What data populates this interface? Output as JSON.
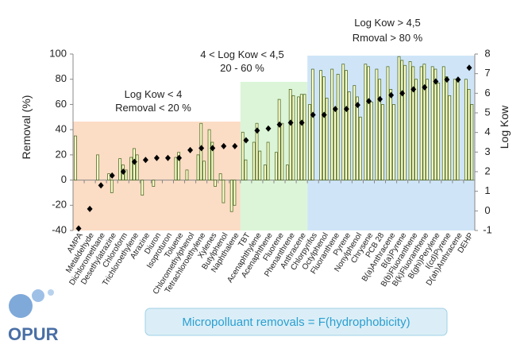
{
  "chart_data": {
    "type": "bar",
    "y_label": "Removal (%)",
    "y2_label": "Log Kow",
    "categories": [
      "AMPA",
      "Metaldehyde",
      "Dichloromethane",
      "Desethylatrazine",
      "Chloroform",
      "Trichloroethylene",
      "Atrazine",
      "Diuron",
      "Isoproturon",
      "Toluene",
      "Chloromethylphenol",
      "Tetrachloroethylene",
      "Xylenes",
      "Butylphenol",
      "Naphthalene",
      "TBT",
      "Acenaphthylene",
      "Acenaphthene",
      "Fluorene",
      "Phenanthrene",
      "Anthracene",
      "Chlorpyrifos",
      "Octylphenol",
      "Fluoranthene",
      "Pyrene",
      "Nonylphenol",
      "Chrysene",
      "PCB 28",
      "B(a)Anthracene",
      "B(a)Pyrene",
      "B(b)Fluoranthene",
      "B(k)Fluoranthene",
      "B(ghi)Perylene",
      "I(cd)Pyrene",
      "D(ah)Anthracene",
      "DEHP"
    ],
    "series": [
      {
        "type": "bar",
        "color": "#ffffcc",
        "values": [
          35,
          null,
          20,
          5,
          17,
          18,
          -12,
          -5,
          null,
          18,
          8,
          20,
          40,
          5,
          -25,
          38,
          30,
          12,
          22,
          12,
          66,
          60,
          87,
          88,
          92,
          75,
          92,
          88,
          90,
          98,
          94,
          90,
          90,
          90,
          80,
          80
        ]
      },
      {
        "type": "bar",
        "color": "#ffffcc",
        "values": [
          null,
          null,
          null,
          -10,
          12,
          25,
          null,
          null,
          null,
          22,
          null,
          45,
          30,
          -18,
          -20,
          16,
          45,
          30,
          64,
          72,
          68,
          88,
          82,
          55,
          87,
          66,
          90,
          80,
          72,
          95,
          90,
          92,
          88,
          82,
          78,
          72
        ]
      },
      {
        "type": "bar",
        "color": "#ffffcc",
        "values": [
          null,
          null,
          null,
          null,
          8,
          20,
          null,
          null,
          null,
          null,
          null,
          15,
          -5,
          null,
          null,
          null,
          23,
          null,
          45,
          67,
          68,
          null,
          65,
          84,
          70,
          50,
          62,
          60,
          60,
          91,
          80,
          80,
          77,
          67,
          null,
          60
        ]
      },
      {
        "type": "scatter",
        "axis": "y2",
        "color": "#000000",
        "values": [
          -0.9,
          0.1,
          1.3,
          1.8,
          2.0,
          2.5,
          2.6,
          2.7,
          2.7,
          2.7,
          3.1,
          3.2,
          3.2,
          3.3,
          3.3,
          3.6,
          4.1,
          4.2,
          4.4,
          4.5,
          4.5,
          4.9,
          4.9,
          5.2,
          5.2,
          5.4,
          5.6,
          5.7,
          5.9,
          6.0,
          6.2,
          6.3,
          6.6,
          6.7,
          6.7,
          7.3
        ]
      }
    ],
    "ylim": [
      -40,
      100
    ],
    "yticks": [
      -40,
      -20,
      0,
      20,
      40,
      60,
      80,
      100
    ],
    "y2lim": [
      -1,
      8
    ],
    "y2ticks": [
      -1,
      0,
      1,
      2,
      3,
      4,
      5,
      6,
      7,
      8
    ],
    "annotations": [
      "Log Kow < 4",
      "Removal < 20 %",
      "4 < Log Kow < 4,5",
      "20 - 60 %",
      "Log Kow > 4,5",
      "Rmoval > 80 %"
    ]
  },
  "caption": "Micropolluant removals = F(hydrophobicity)",
  "logo": "OPUR"
}
